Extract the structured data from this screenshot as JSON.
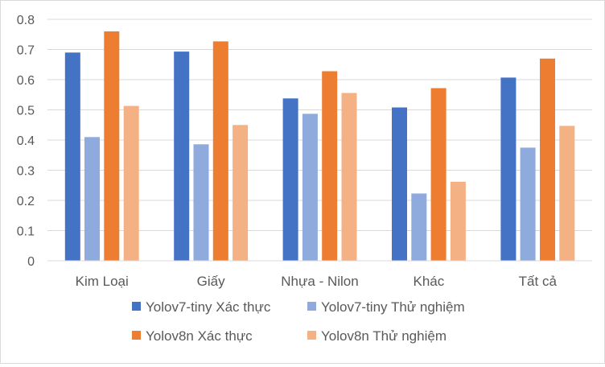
{
  "chart_data": {
    "type": "bar",
    "title": "",
    "xlabel": "",
    "ylabel": "",
    "categories": [
      "Kim Loại",
      "Giấy",
      "Nhựa - Nilon",
      "Khác",
      "Tất cả"
    ],
    "ylim": [
      0,
      0.8
    ],
    "yticks": [
      "0",
      "0.1",
      "0.2",
      "0.3",
      "0.4",
      "0.5",
      "0.6",
      "0.7",
      "0.8"
    ],
    "grid": true,
    "legend_position": "bottom",
    "series": [
      {
        "name": "Yolov7-tiny Xác thực",
        "color": "#4472C4",
        "values": [
          0.69,
          0.693,
          0.538,
          0.508,
          0.607
        ]
      },
      {
        "name": "Yolov7-tiny Thử nghiệm",
        "color": "#8FAADC",
        "values": [
          0.41,
          0.386,
          0.487,
          0.223,
          0.375
        ]
      },
      {
        "name": "Yolov8n Xác thực",
        "color": "#ED7D31",
        "values": [
          0.76,
          0.727,
          0.628,
          0.572,
          0.67
        ]
      },
      {
        "name": "Yolov8n Thử nghiệm",
        "color": "#F4B183",
        "values": [
          0.513,
          0.45,
          0.556,
          0.262,
          0.447
        ]
      }
    ]
  }
}
